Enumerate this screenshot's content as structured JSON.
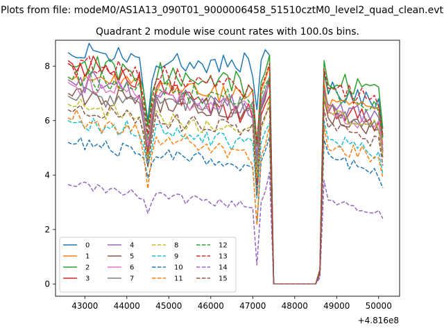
{
  "chart_data": {
    "type": "line",
    "suptitle": "Plots from file: modeM0/AS1A13_090T01_9000006458_51510cztM0_level2_quad_clean.evt",
    "title": "Quadrant 2 module wise count rates with 100.0s bins.",
    "xlabel": "",
    "ylabel": "",
    "x_offset_label": "+4.816e8",
    "xlim": [
      42300,
      50500
    ],
    "ylim": [
      -0.45,
      8.95
    ],
    "x_ticks": [
      43000,
      44000,
      45000,
      46000,
      47000,
      48000,
      49000,
      50000
    ],
    "x_tick_labels": [
      "43000",
      "44000",
      "45000",
      "46000",
      "47000",
      "48000",
      "49000",
      "50000"
    ],
    "y_ticks": [
      0,
      2,
      4,
      6,
      8
    ],
    "y_tick_labels": [
      "0",
      "2",
      "4",
      "6",
      "8"
    ],
    "x_start": 42600,
    "x_step": 100,
    "series": [
      {
        "name": "0",
        "color": "#1f77b4",
        "dashed": false,
        "levels": [
          8.5,
          8.0,
          7.2
        ],
        "dip": 6.0
      },
      {
        "name": "1",
        "color": "#ff7f0e",
        "dashed": false,
        "levels": [
          7.6,
          6.9,
          6.8
        ],
        "dip": 5.0
      },
      {
        "name": "2",
        "color": "#2ca02c",
        "dashed": false,
        "levels": [
          8.1,
          7.2,
          7.6
        ],
        "dip": 5.8
      },
      {
        "name": "3",
        "color": "#d62728",
        "dashed": false,
        "levels": [
          8.2,
          6.0,
          6.5
        ],
        "dip": 4.8
      },
      {
        "name": "4",
        "color": "#9467bd",
        "dashed": false,
        "levels": [
          7.5,
          6.3,
          6.6
        ],
        "dip": 5.0
      },
      {
        "name": "5",
        "color": "#8c564b",
        "dashed": false,
        "levels": [
          7.0,
          6.2,
          6.2
        ],
        "dip": 4.6
      },
      {
        "name": "6",
        "color": "#e377c2",
        "dashed": false,
        "levels": [
          7.4,
          6.4,
          6.4
        ],
        "dip": 5.1
      },
      {
        "name": "7",
        "color": "#7f7f7f",
        "dashed": false,
        "levels": [
          6.9,
          6.5,
          6.4
        ],
        "dip": 4.5
      },
      {
        "name": "8",
        "color": "#bcbd22",
        "dashed": true,
        "levels": [
          6.6,
          5.5,
          6.3
        ],
        "dip": 4.6
      },
      {
        "name": "9",
        "color": "#17becf",
        "dashed": true,
        "levels": [
          6.0,
          5.0,
          5.4
        ],
        "dip": 4.3
      },
      {
        "name": "10",
        "color": "#1f77b4",
        "dashed": true,
        "levels": [
          5.2,
          4.3,
          4.7
        ],
        "dip": 3.9
      },
      {
        "name": "11",
        "color": "#ff7f0e",
        "dashed": true,
        "levels": [
          6.1,
          4.5,
          5.2
        ],
        "dip": 3.5
      },
      {
        "name": "12",
        "color": "#2ca02c",
        "dashed": true,
        "levels": [
          7.6,
          6.7,
          7.1
        ],
        "dip": 5.3
      },
      {
        "name": "13",
        "color": "#d62728",
        "dashed": true,
        "levels": [
          8.1,
          7.0,
          7.3
        ],
        "dip": 5.5
      },
      {
        "name": "14",
        "color": "#9467bd",
        "dashed": true,
        "levels": [
          3.65,
          2.8,
          3.2
        ],
        "dip": 2.6
      },
      {
        "name": "15",
        "color": "#8c564b",
        "dashed": true,
        "levels": [
          6.4,
          5.6,
          5.8
        ],
        "dip": 4.3
      }
    ]
  }
}
